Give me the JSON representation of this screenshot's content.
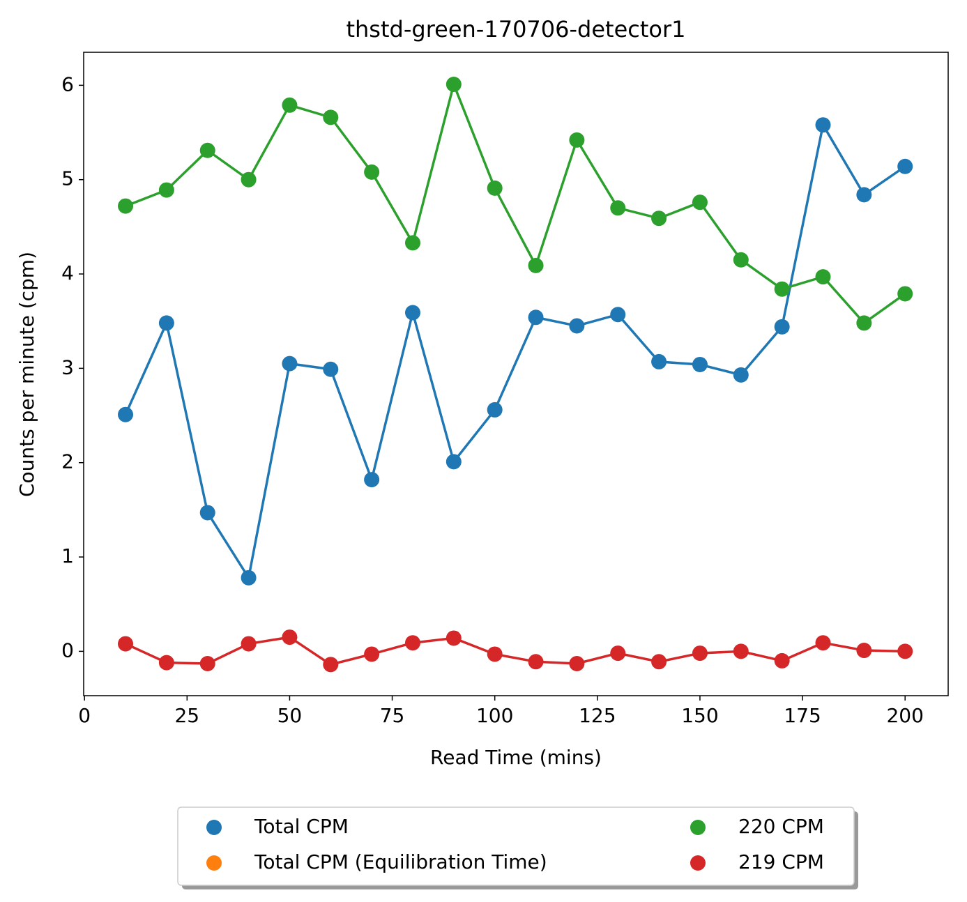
{
  "chart_data": {
    "type": "line",
    "title": "thstd-green-170706-detector1",
    "xlabel": "Read Time (mins)",
    "ylabel": "Counts per minute (cpm)",
    "x": [
      10,
      20,
      30,
      40,
      50,
      60,
      70,
      80,
      90,
      100,
      110,
      120,
      130,
      140,
      150,
      160,
      170,
      180,
      190,
      200
    ],
    "series": [
      {
        "name": "Total CPM",
        "color": "#1f77b4",
        "values": [
          2.51,
          3.48,
          1.47,
          0.78,
          3.05,
          2.99,
          1.82,
          3.59,
          2.01,
          2.56,
          3.54,
          3.45,
          3.57,
          3.07,
          3.04,
          2.93,
          3.44,
          5.58,
          4.84,
          5.14
        ]
      },
      {
        "name": "Total CPM (Equilibration Time)",
        "color": "#ff7f0e",
        "x": [],
        "values": []
      },
      {
        "name": "220 CPM",
        "color": "#2ca02c",
        "values": [
          4.72,
          4.89,
          5.31,
          5.0,
          5.79,
          5.66,
          5.08,
          4.33,
          6.01,
          4.91,
          4.09,
          5.42,
          4.7,
          4.59,
          4.76,
          4.15,
          3.84,
          3.97,
          3.48,
          3.79
        ]
      },
      {
        "name": "219 CPM",
        "color": "#d62728",
        "values": [
          0.08,
          -0.12,
          -0.13,
          0.08,
          0.15,
          -0.14,
          -0.03,
          0.09,
          0.14,
          -0.03,
          -0.11,
          -0.13,
          -0.02,
          -0.11,
          -0.02,
          0.0,
          -0.1,
          0.09,
          0.01,
          0.0
        ]
      }
    ],
    "xlim": [
      -0.2,
      210.5
    ],
    "xticks": [
      0,
      25,
      50,
      75,
      100,
      125,
      150,
      175,
      200
    ],
    "ylim": [
      -0.47,
      6.35
    ],
    "yticks": [
      0,
      1,
      2,
      3,
      4,
      5,
      6
    ],
    "legend": "below",
    "legend_columns": 2
  }
}
